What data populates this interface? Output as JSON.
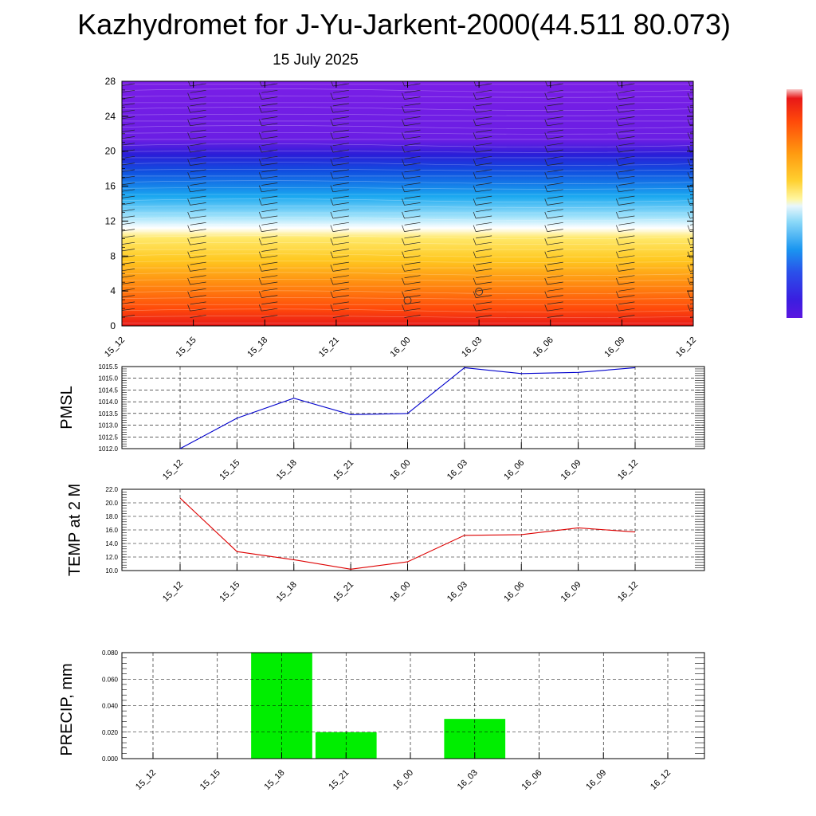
{
  "header": {
    "title": "Kazhydromet for J-Yu-Jarkent-2000(44.511 80.073)",
    "subtitle": "15 July 2025"
  },
  "chart_data": [
    {
      "id": "height-time",
      "type": "heatmap",
      "x_tick_labels": [
        "15_12",
        "15_15",
        "15_18",
        "15_21",
        "16_00",
        "16_03",
        "16_06",
        "16_09",
        "16_12"
      ],
      "y_ticks": [
        "0",
        "4",
        "8",
        "12",
        "16",
        "20",
        "24",
        "28"
      ],
      "ylim": [
        0,
        28
      ],
      "colorbar_colors": [
        "#7a1ee6",
        "#3a1ee0",
        "#1848e8",
        "#1a96f0",
        "#6ad0f8",
        "#ffffff",
        "#ffe030",
        "#ffa010",
        "#ff5a0a",
        "#e81818"
      ],
      "wind_barbs": true
    },
    {
      "id": "pmsl",
      "type": "line",
      "ylabel": "PMSL",
      "x_tick_labels": [
        "15_12",
        "15_15",
        "15_18",
        "15_21",
        "16_00",
        "16_03",
        "16_06",
        "16_09",
        "16_12"
      ],
      "y_tick_labels": [
        "1012.0",
        "1012.5",
        "1013.0",
        "1013.5",
        "1014.0",
        "1014.5",
        "1015.0",
        "1015.5"
      ],
      "ylim": [
        1012.0,
        1015.5
      ],
      "grid": true,
      "series": [
        {
          "values": [
            1012.0,
            1013.3,
            1014.15,
            1013.45,
            1013.5,
            1015.45,
            1015.2,
            1015.25,
            1015.45
          ],
          "color": "#0000cc"
        }
      ]
    },
    {
      "id": "temp",
      "type": "line",
      "ylabel": "TEMP at 2 M",
      "x_tick_labels": [
        "15_12",
        "15_15",
        "15_18",
        "15_21",
        "16_00",
        "16_03",
        "16_06",
        "16_09",
        "16_12"
      ],
      "y_tick_labels": [
        "10.0",
        "12.0",
        "14.0",
        "16.0",
        "18.0",
        "20.0",
        "22.0"
      ],
      "ylim": [
        10.0,
        22.0
      ],
      "grid": true,
      "series": [
        {
          "values": [
            20.7,
            12.8,
            11.6,
            10.2,
            11.3,
            15.2,
            15.3,
            16.3,
            15.7
          ],
          "color": "#dd0000"
        }
      ]
    },
    {
      "id": "precip",
      "type": "bar",
      "ylabel": "PRECIP, mm",
      "x_tick_labels": [
        "15_12",
        "15_15",
        "15_18",
        "15_21",
        "16_00",
        "16_03",
        "16_06",
        "16_09",
        "16_12"
      ],
      "y_tick_labels": [
        "0.000",
        "0.020",
        "0.040",
        "0.060",
        "0.080"
      ],
      "ylim": [
        0,
        0.08
      ],
      "grid": true,
      "values": [
        0,
        0,
        0.08,
        0.02,
        0,
        0.03,
        0,
        0,
        0
      ],
      "color": "#00ee00"
    }
  ]
}
